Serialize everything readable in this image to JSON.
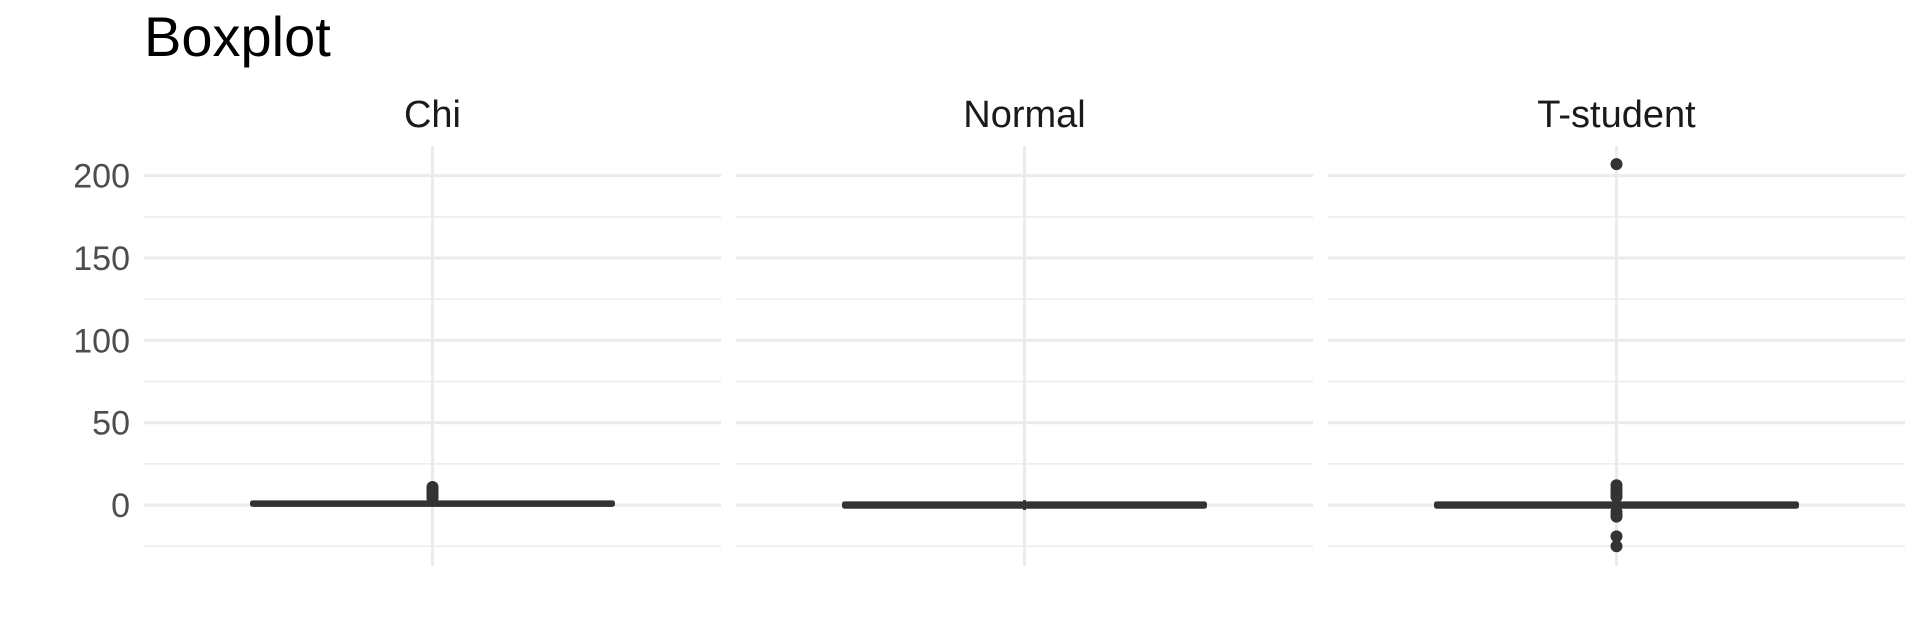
{
  "chart_data": {
    "type": "boxplot",
    "title": "Boxplot",
    "xlabel": "",
    "ylabel": "",
    "ylim": [
      -37,
      218
    ],
    "y_ticks": [
      0,
      50,
      100,
      150,
      200
    ],
    "grid": true,
    "facets": [
      {
        "label": "Chi",
        "box": {
          "min": 0.1,
          "q1": 0.4,
          "median": 0.5,
          "q3": 1.3,
          "max": 3.2
        },
        "outliers": [
          4,
          5,
          6,
          7,
          8,
          9,
          10,
          11
        ]
      },
      {
        "label": "Normal",
        "box": {
          "min": -3,
          "q1": -0.7,
          "median": 0.0,
          "q3": 0.7,
          "max": 3
        },
        "outliers": []
      },
      {
        "label": "T-student",
        "box": {
          "min": -2.5,
          "q1": -0.7,
          "median": 0.0,
          "q3": 0.7,
          "max": 2.5
        },
        "outliers": [
          207,
          12,
          10,
          8,
          6,
          5,
          -4,
          -6,
          -7,
          -19,
          -25
        ]
      }
    ]
  }
}
